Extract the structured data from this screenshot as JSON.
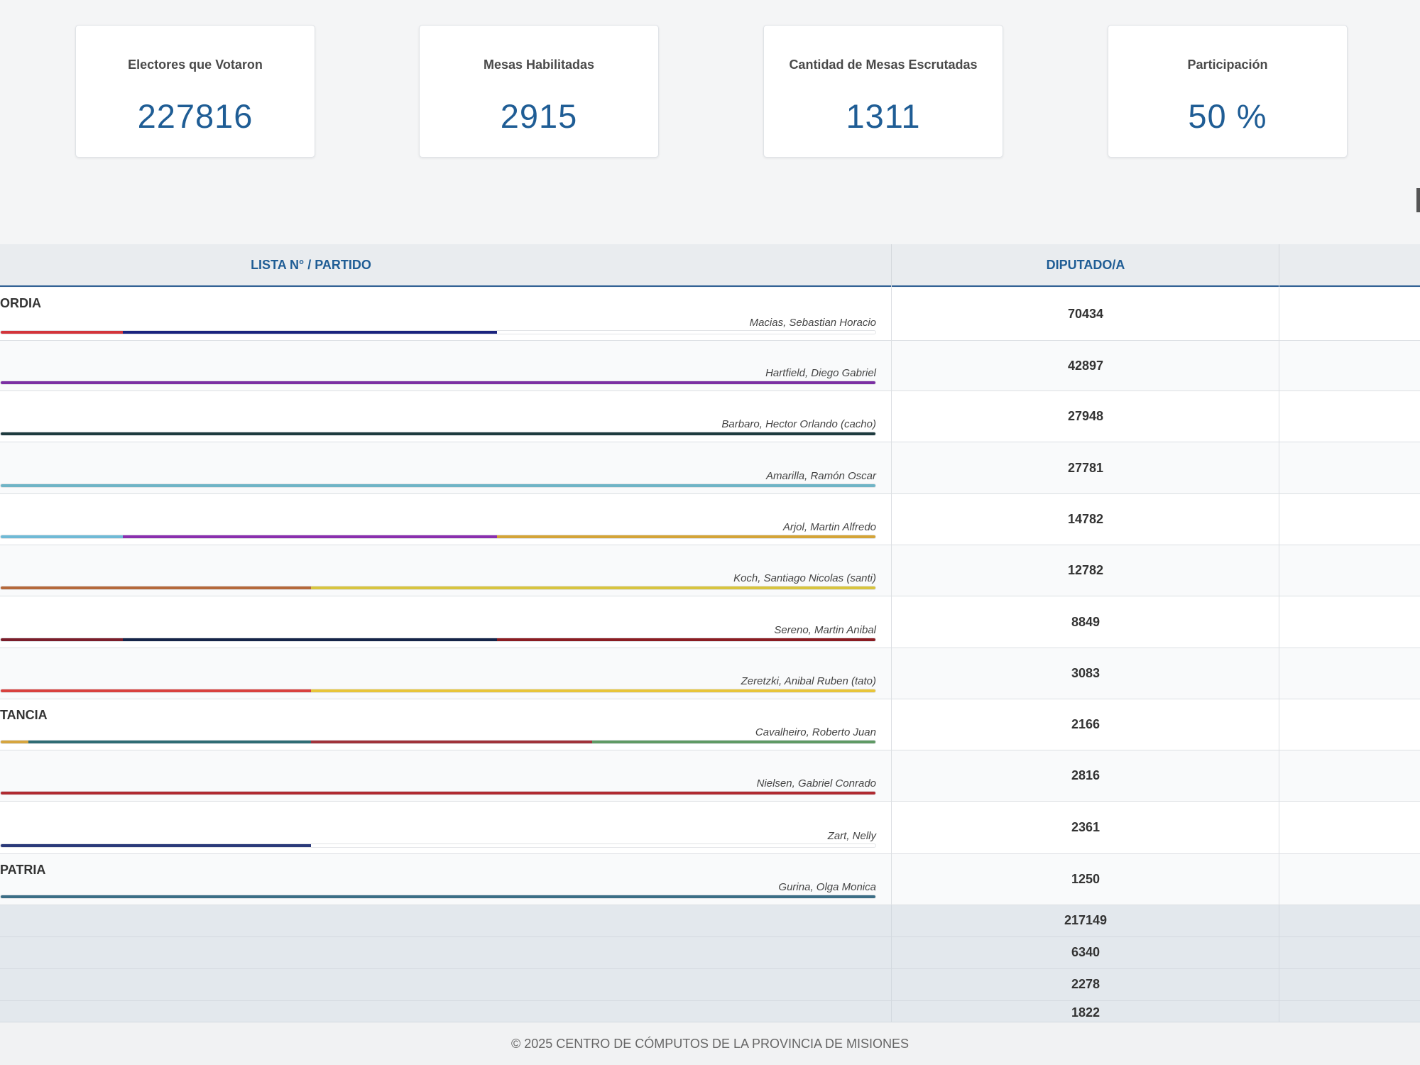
{
  "stats": [
    {
      "title": "Electores que Votaron",
      "value": "227816"
    },
    {
      "title": "Mesas Habilitadas",
      "value": "2915"
    },
    {
      "title": "Cantidad de Mesas Escrutadas",
      "value": "1311"
    },
    {
      "title": "Participación",
      "value": "50 %"
    }
  ],
  "table": {
    "header_party": "LISTA N° / PARTIDO",
    "header_diputado": "DIPUTADO/A",
    "rows": [
      {
        "party": "ORDIA",
        "candidate": "Macias, Sebastian Horacio",
        "votes": "70434",
        "bar": [
          {
            "color": "#d3343a",
            "from": 0,
            "to": 0.14
          },
          {
            "color": "#1a237e",
            "from": 0.14,
            "to": 0.567
          }
        ]
      },
      {
        "party": "",
        "candidate": "Hartfield, Diego Gabriel",
        "votes": "42897",
        "bar": [
          {
            "color": "#7b2fa3",
            "from": 0,
            "to": 1
          }
        ]
      },
      {
        "party": "",
        "candidate": "Barbaro, Hector Orlando (cacho)",
        "votes": "27948",
        "bar": [
          {
            "color": "#1e3b3f",
            "from": 0,
            "to": 1
          }
        ]
      },
      {
        "party": "",
        "candidate": "Amarilla, Ramón Oscar",
        "votes": "27781",
        "bar": [
          {
            "color": "#6fb4c6",
            "from": 0,
            "to": 1
          }
        ]
      },
      {
        "party": "",
        "candidate": "Arjol, Martin Alfredo",
        "votes": "14782",
        "bar": [
          {
            "color": "#6fbad6",
            "from": 0,
            "to": 0.14
          },
          {
            "color": "#8a2fae",
            "from": 0.14,
            "to": 0.567
          },
          {
            "color": "#d4a437",
            "from": 0.567,
            "to": 1
          }
        ]
      },
      {
        "party": "",
        "candidate": "Koch, Santiago Nicolas (santi)",
        "votes": "12782",
        "bar": [
          {
            "color": "#b5683a",
            "from": 0,
            "to": 0.355
          },
          {
            "color": "#d8c43e",
            "from": 0.355,
            "to": 1
          }
        ]
      },
      {
        "party": "",
        "candidate": "Sereno, Martin Anibal",
        "votes": "8849",
        "bar": [
          {
            "color": "#7a1d2a",
            "from": 0,
            "to": 0.14
          },
          {
            "color": "#152448",
            "from": 0.14,
            "to": 0.567
          },
          {
            "color": "#8a1c22",
            "from": 0.567,
            "to": 1
          }
        ]
      },
      {
        "party": "",
        "candidate": "Zeretzki, Anibal Ruben (tato)",
        "votes": "3083",
        "bar": [
          {
            "color": "#d8413e",
            "from": 0,
            "to": 0.355
          },
          {
            "color": "#e8c53a",
            "from": 0.355,
            "to": 1
          }
        ]
      },
      {
        "party": "TANCIA",
        "candidate": "Cavalheiro, Roberto Juan",
        "votes": "2166",
        "bar": [
          {
            "color": "#d6a53e",
            "from": 0,
            "to": 0.032
          },
          {
            "color": "#2f6c74",
            "from": 0.032,
            "to": 0.355
          },
          {
            "color": "#a0323a",
            "from": 0.355,
            "to": 0.676
          },
          {
            "color": "#5f9a64",
            "from": 0.676,
            "to": 1
          }
        ]
      },
      {
        "party": "",
        "candidate": "Nielsen, Gabriel Conrado",
        "votes": "2816",
        "bar": [
          {
            "color": "#b02a30",
            "from": 0,
            "to": 1
          }
        ]
      },
      {
        "party": "",
        "candidate": "Zart, Nelly",
        "votes": "2361",
        "bar": [
          {
            "color": "#2b3a7a",
            "from": 0,
            "to": 0.355
          }
        ]
      },
      {
        "party": "PATRIA",
        "candidate": "Gurina, Olga Monica",
        "votes": "1250",
        "bar": [
          {
            "color": "#3c6e86",
            "from": 0,
            "to": 1
          }
        ]
      }
    ],
    "totals": [
      "217149",
      "6340",
      "2278",
      "1822"
    ]
  },
  "footer": "© 2025 CENTRO DE CÓMPUTOS DE LA PROVINCIA DE MISIONES"
}
